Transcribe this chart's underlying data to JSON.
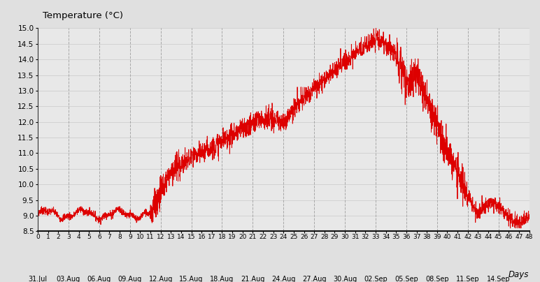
{
  "title": "Temperature (°C)",
  "xlabel": "Days",
  "xlim": [
    0,
    48
  ],
  "ylim": [
    8.5,
    15.0
  ],
  "yticks": [
    8.5,
    9.0,
    9.5,
    10.0,
    10.5,
    11.0,
    11.5,
    12.0,
    12.5,
    13.0,
    13.5,
    14.0,
    14.5,
    15.0
  ],
  "xticks_days": [
    0,
    1,
    2,
    3,
    4,
    5,
    6,
    7,
    8,
    9,
    10,
    11,
    12,
    13,
    14,
    15,
    16,
    17,
    18,
    19,
    20,
    21,
    22,
    23,
    24,
    25,
    26,
    27,
    28,
    29,
    30,
    31,
    32,
    33,
    34,
    35,
    36,
    37,
    38,
    39,
    40,
    41,
    42,
    43,
    44,
    45,
    46,
    47,
    48
  ],
  "date_labels": [
    [
      "31.Jul",
      0
    ],
    [
      "03.Aug",
      3
    ],
    [
      "06.Aug",
      6
    ],
    [
      "09.Aug",
      9
    ],
    [
      "12.Aug",
      12
    ],
    [
      "15.Aug",
      15
    ],
    [
      "18.Aug",
      18
    ],
    [
      "21.Aug",
      21
    ],
    [
      "24.Aug",
      24
    ],
    [
      "27.Aug",
      27
    ],
    [
      "30.Aug",
      30
    ],
    [
      "02.Sep",
      33
    ],
    [
      "05.Sep",
      36
    ],
    [
      "08.Sep",
      39
    ],
    [
      "11.Sep",
      42
    ],
    [
      "14.Sep",
      45
    ]
  ],
  "vgrid_positions": [
    3,
    6,
    9,
    12,
    15,
    18,
    21,
    24,
    27,
    30,
    33,
    36,
    39,
    42,
    45
  ],
  "line_color": "#dd0000",
  "bg_color": "#e0e0e0",
  "plot_bg_color": "#e8e8e8",
  "grid_color": "#999999"
}
